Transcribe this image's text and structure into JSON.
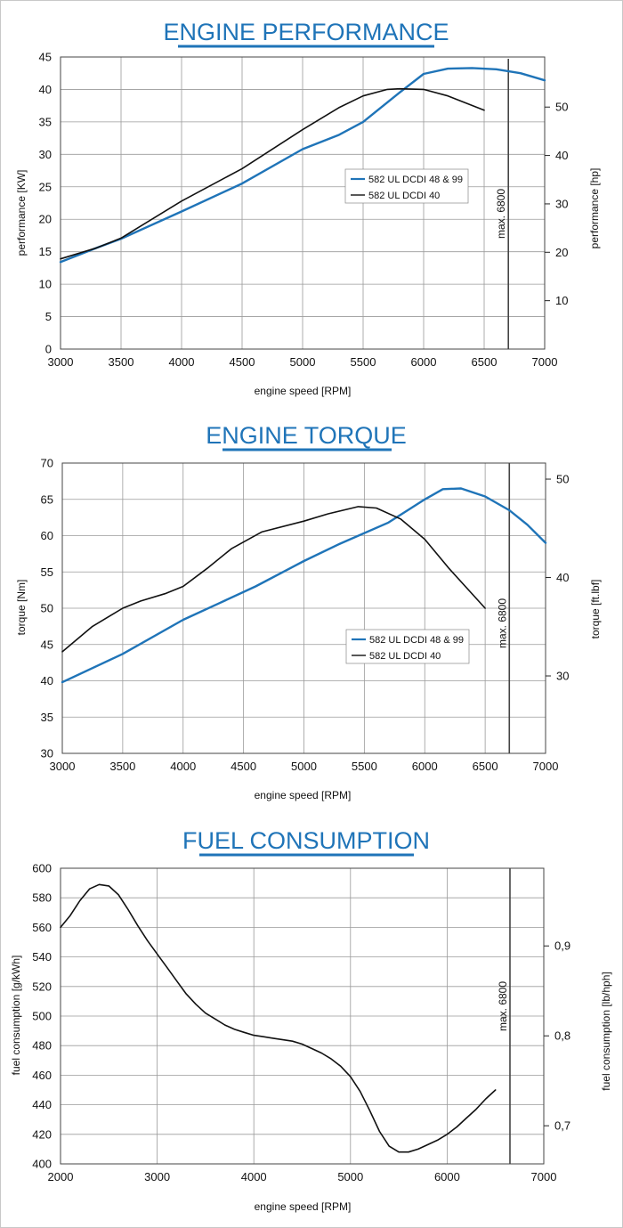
{
  "chart_data": [
    {
      "type": "line",
      "title": "ENGINE PERFORMANCE",
      "xlabel": "engine speed [RPM]",
      "ylabel": "performance [KW]",
      "y2label": "performance [hp]",
      "xlim": [
        3000,
        7000
      ],
      "ylim": [
        0,
        45
      ],
      "xticks": [
        3000,
        3500,
        4000,
        4500,
        5000,
        5500,
        6000,
        6500,
        7000
      ],
      "yticks": [
        0,
        5,
        10,
        15,
        20,
        25,
        30,
        35,
        40,
        45
      ],
      "y2ticks": [
        10,
        20,
        30,
        40,
        50
      ],
      "y2tick_labels": [
        "10",
        "20",
        "30",
        "40",
        "50"
      ],
      "y2_factor": 1.341,
      "grid": true,
      "max_line": {
        "x": 6700,
        "label": "max. 6800"
      },
      "legend_position": "center-right",
      "series": [
        {
          "name": "582 UL DCDI 48 & 99",
          "color": "#1f74b8",
          "x": [
            3000,
            3300,
            3500,
            4000,
            4500,
            5000,
            5300,
            5500,
            5800,
            6000,
            6200,
            6400,
            6600,
            6800,
            7000
          ],
          "y": [
            13.4,
            15.6,
            17.0,
            21.2,
            25.5,
            30.8,
            33.0,
            35.0,
            39.5,
            42.4,
            43.2,
            43.3,
            43.1,
            42.5,
            41.4
          ]
        },
        {
          "name": "582 UL DCDI 40",
          "color": "#111111",
          "x": [
            3000,
            3300,
            3500,
            4000,
            4500,
            5000,
            5300,
            5500,
            5700,
            5800,
            6000,
            6200,
            6500
          ],
          "y": [
            13.9,
            15.6,
            17.1,
            22.8,
            27.8,
            33.8,
            37.2,
            39.0,
            40.0,
            40.1,
            40.0,
            39.0,
            36.8
          ]
        }
      ]
    },
    {
      "type": "line",
      "title": "ENGINE TORQUE",
      "xlabel": "engine speed [RPM]",
      "ylabel": "torque [Nm]",
      "y2label": "torque [ft.lbf]",
      "xlim": [
        3000,
        7000
      ],
      "ylim": [
        30,
        70
      ],
      "xticks": [
        3000,
        3500,
        4000,
        4500,
        5000,
        5500,
        6000,
        6500,
        7000
      ],
      "yticks": [
        30,
        35,
        40,
        45,
        50,
        55,
        60,
        65,
        70
      ],
      "y2ticks": [
        30,
        40,
        50
      ],
      "y2tick_labels": [
        "30",
        "40",
        "50"
      ],
      "y2_factor": 0.7376,
      "grid": true,
      "max_line": {
        "x": 6700,
        "label": "max. 6800"
      },
      "legend_position": "bottom-right",
      "series": [
        {
          "name": "582 UL DCDI 48 & 99",
          "color": "#1f74b8",
          "x": [
            3000,
            3500,
            4000,
            4300,
            4600,
            5000,
            5300,
            5700,
            6000,
            6150,
            6300,
            6500,
            6700,
            6850,
            7000
          ],
          "y": [
            39.8,
            43.7,
            48.4,
            50.7,
            53.0,
            56.5,
            58.9,
            61.8,
            65.0,
            66.4,
            66.5,
            65.4,
            63.5,
            61.5,
            59.0
          ]
        },
        {
          "name": "582 UL DCDI 40",
          "color": "#111111",
          "x": [
            3000,
            3250,
            3500,
            3650,
            3850,
            4000,
            4200,
            4400,
            4650,
            5000,
            5200,
            5450,
            5600,
            5800,
            6000,
            6200,
            6500
          ],
          "y": [
            44.0,
            47.5,
            50.0,
            51.0,
            52.0,
            53.0,
            55.5,
            58.2,
            60.5,
            62.0,
            63.0,
            64.0,
            63.8,
            62.3,
            59.5,
            55.5,
            50.0
          ]
        }
      ]
    },
    {
      "type": "line",
      "title": "FUEL CONSUMPTION",
      "xlabel": "engine speed [RPM]",
      "ylabel": "fuel consumption [g/kWh]",
      "y2label": "fuel consumption [lb/hph]",
      "xlim": [
        2000,
        7000
      ],
      "ylim": [
        400,
        600
      ],
      "xticks": [
        2000,
        3000,
        4000,
        5000,
        6000,
        7000
      ],
      "yticks": [
        400,
        420,
        440,
        460,
        480,
        500,
        520,
        540,
        560,
        580,
        600
      ],
      "y2ticks": [
        0.7,
        0.8,
        0.9
      ],
      "y2tick_labels": [
        "0,7",
        "0,8",
        "0,9"
      ],
      "y2_factor": 0.001644,
      "grid": true,
      "max_line": {
        "x": 6650,
        "label": "max. 6800"
      },
      "series": [
        {
          "name": "",
          "color": "#111111",
          "x": [
            2000,
            2100,
            2200,
            2300,
            2400,
            2500,
            2600,
            2700,
            2800,
            2900,
            3000,
            3100,
            3200,
            3300,
            3400,
            3500,
            3600,
            3700,
            3800,
            3900,
            4000,
            4100,
            4200,
            4300,
            4400,
            4500,
            4600,
            4700,
            4800,
            4900,
            5000,
            5100,
            5200,
            5300,
            5400,
            5500,
            5600,
            5700,
            5800,
            5900,
            6000,
            6100,
            6200,
            6300,
            6400,
            6500
          ],
          "y": [
            560,
            568,
            578,
            586,
            589,
            588,
            582,
            572,
            561,
            551,
            542,
            533,
            524,
            515,
            508,
            502,
            498,
            494,
            491,
            489,
            487,
            486,
            485,
            484,
            483,
            481,
            478,
            475,
            471,
            466,
            459,
            449,
            436,
            422,
            412,
            408,
            408,
            410,
            413,
            416,
            420,
            425,
            431,
            437,
            444,
            450
          ]
        }
      ]
    }
  ]
}
